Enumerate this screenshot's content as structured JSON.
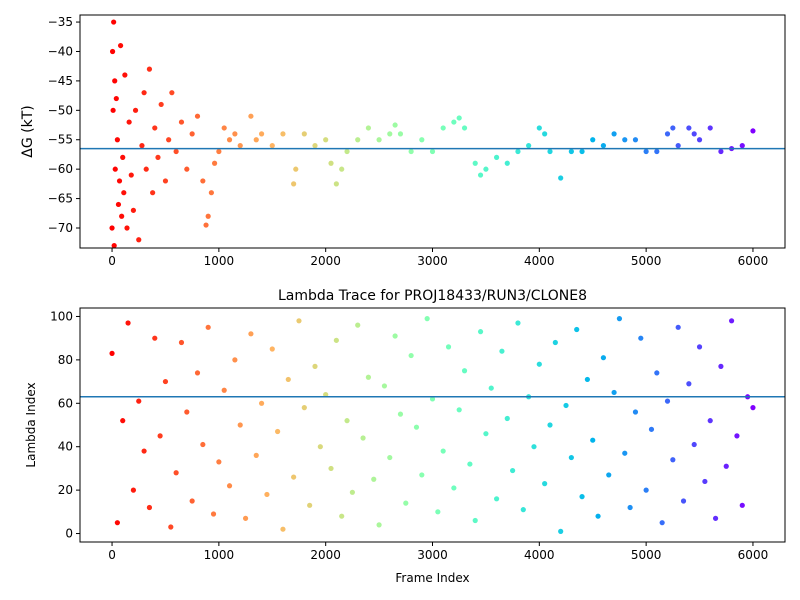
{
  "chart_data": [
    {
      "type": "scatter",
      "ylabel": "ΔG (kT)",
      "colormap": "rainbow_r",
      "x": [
        0,
        5,
        10,
        15,
        20,
        25,
        30,
        40,
        50,
        60,
        70,
        80,
        90,
        100,
        110,
        120,
        140,
        160,
        180,
        200,
        220,
        250,
        280,
        300,
        320,
        350,
        380,
        400,
        430,
        460,
        500,
        530,
        560,
        600,
        650,
        700,
        750,
        800,
        850,
        880,
        900,
        930,
        960,
        1000,
        1050,
        1100,
        1150,
        1200,
        1300,
        1350,
        1400,
        1500,
        1600,
        1700,
        1720,
        1800,
        1900,
        2000,
        2050,
        2100,
        2150,
        2200,
        2300,
        2400,
        2500,
        2600,
        2650,
        2700,
        2800,
        2900,
        3000,
        3100,
        3200,
        3250,
        3300,
        3400,
        3450,
        3500,
        3600,
        3700,
        3800,
        3900,
        4000,
        4050,
        4100,
        4200,
        4300,
        4400,
        4500,
        4600,
        4700,
        4800,
        4900,
        5000,
        5100,
        5200,
        5250,
        5300,
        5400,
        5450,
        5500,
        5600,
        5700,
        5800,
        5900,
        6000
      ],
      "y": [
        -70,
        -40,
        -50,
        -35,
        -73,
        -45,
        -60,
        -48,
        -55,
        -66,
        -62,
        -39,
        -68,
        -58,
        -64,
        -44,
        -70,
        -52,
        -61,
        -67,
        -50,
        -72,
        -56,
        -47,
        -60,
        -43,
        -64,
        -53,
        -58,
        -49,
        -62,
        -55,
        -47,
        -57,
        -52,
        -60,
        -54,
        -51,
        -62,
        -69.5,
        -68,
        -64,
        -59,
        -57,
        -53,
        -55,
        -54,
        -56,
        -51,
        -55,
        -54,
        -56,
        -54,
        -62.5,
        -60,
        -54,
        -56,
        -55,
        -59,
        -62.5,
        -60,
        -57,
        -55,
        -53,
        -55,
        -54,
        -52.5,
        -54,
        -57,
        -55,
        -57,
        -53,
        -52,
        -51.3,
        -53,
        -59,
        -61,
        -60,
        -58,
        -59,
        -57,
        -56,
        -53,
        -54,
        -57,
        -61.5,
        -57,
        -57,
        -55,
        -56,
        -54,
        -55,
        -55,
        -57,
        -57,
        -54,
        -53,
        -56,
        -53,
        -54,
        -55,
        -53,
        -57,
        -56.5,
        -56,
        -53.5
      ],
      "hline": -56.5,
      "hline_color": "#1f77b4",
      "xlim": [
        -300,
        6300
      ],
      "ylim": [
        -73.4,
        -33.8
      ],
      "xticks": [
        0,
        1000,
        2000,
        3000,
        4000,
        5000,
        6000
      ],
      "yticks": [
        {
          "value": -70,
          "label": "−70"
        },
        {
          "value": -65,
          "label": "−65"
        },
        {
          "value": -60,
          "label": "−60"
        },
        {
          "value": -55,
          "label": "−55"
        },
        {
          "value": -50,
          "label": "−50"
        },
        {
          "value": -45,
          "label": "−45"
        },
        {
          "value": -40,
          "label": "−40"
        },
        {
          "value": -35,
          "label": "−35"
        }
      ]
    },
    {
      "type": "scatter",
      "title": "Lambda Trace for PROJ18433/RUN3/CLONE8",
      "xlabel": "Frame Index",
      "ylabel": "Lambda Index",
      "colormap": "rainbow_r",
      "x": [
        0,
        50,
        100,
        150,
        200,
        250,
        300,
        350,
        400,
        450,
        500,
        550,
        600,
        650,
        700,
        750,
        800,
        850,
        900,
        950,
        1000,
        1050,
        1100,
        1150,
        1200,
        1250,
        1300,
        1350,
        1400,
        1450,
        1500,
        1550,
        1600,
        1650,
        1700,
        1750,
        1800,
        1850,
        1900,
        1950,
        2000,
        2050,
        2100,
        2150,
        2200,
        2250,
        2300,
        2350,
        2400,
        2450,
        2500,
        2550,
        2600,
        2650,
        2700,
        2750,
        2800,
        2850,
        2900,
        2950,
        3000,
        3050,
        3100,
        3150,
        3200,
        3250,
        3300,
        3350,
        3400,
        3450,
        3500,
        3550,
        3600,
        3650,
        3700,
        3750,
        3800,
        3850,
        3900,
        3950,
        4000,
        4050,
        4100,
        4150,
        4200,
        4250,
        4300,
        4350,
        4400,
        4450,
        4500,
        4550,
        4600,
        4650,
        4700,
        4750,
        4800,
        4850,
        4900,
        4950,
        5000,
        5050,
        5100,
        5150,
        5200,
        5250,
        5300,
        5350,
        5400,
        5450,
        5500,
        5550,
        5600,
        5650,
        5700,
        5750,
        5800,
        5850,
        5900,
        5950,
        6000
      ],
      "y": [
        83,
        5,
        52,
        97,
        20,
        61,
        38,
        12,
        90,
        45,
        70,
        3,
        28,
        88,
        56,
        15,
        74,
        41,
        95,
        9,
        33,
        66,
        22,
        80,
        50,
        7,
        92,
        36,
        60,
        18,
        85,
        47,
        2,
        71,
        26,
        98,
        58,
        13,
        77,
        40,
        64,
        30,
        89,
        8,
        52,
        19,
        96,
        44,
        72,
        25,
        4,
        68,
        35,
        91,
        55,
        14,
        82,
        49,
        27,
        99,
        62,
        10,
        38,
        86,
        21,
        57,
        75,
        32,
        6,
        93,
        46,
        67,
        16,
        84,
        53,
        29,
        97,
        11,
        63,
        40,
        78,
        23,
        50,
        88,
        1,
        59,
        35,
        94,
        17,
        71,
        43,
        8,
        81,
        27,
        65,
        99,
        37,
        12,
        56,
        90,
        20,
        48,
        74,
        5,
        61,
        34,
        95,
        15,
        69,
        41,
        86,
        24,
        52,
        7,
        77,
        31,
        98,
        45,
        13,
        63,
        58
      ],
      "hline": 63,
      "hline_color": "#1f77b4",
      "xlim": [
        -300,
        6300
      ],
      "ylim": [
        -3.9,
        103.9
      ],
      "xticks": [
        0,
        1000,
        2000,
        3000,
        4000,
        5000,
        6000
      ],
      "yticks": [
        0,
        20,
        40,
        60,
        80,
        100
      ]
    }
  ]
}
